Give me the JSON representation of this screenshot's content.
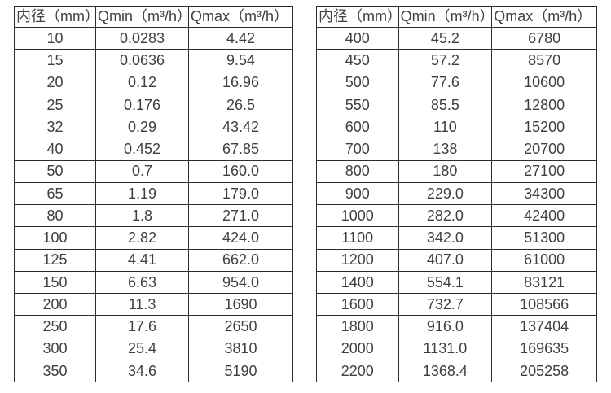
{
  "colors": {
    "background": "#ffffff",
    "border": "#2c2c2c",
    "text": "#3f3f3f"
  },
  "tables": {
    "headers": [
      "内径（mm）",
      "Qmin（m³/h）",
      "Qmax（m³/h）"
    ],
    "left": {
      "rows": [
        [
          "10",
          "0.0283",
          "4.42"
        ],
        [
          "15",
          "0.0636",
          "9.54"
        ],
        [
          "20",
          "0.12",
          "16.96"
        ],
        [
          "25",
          "0.176",
          "26.5"
        ],
        [
          "32",
          "0.29",
          "43.42"
        ],
        [
          "40",
          "0.452",
          "67.85"
        ],
        [
          "50",
          "0.7",
          "160.0"
        ],
        [
          "65",
          "1.19",
          "179.0"
        ],
        [
          "80",
          "1.8",
          "271.0"
        ],
        [
          "100",
          "2.82",
          "424.0"
        ],
        [
          "125",
          "4.41",
          "662.0"
        ],
        [
          "150",
          "6.63",
          "954.0"
        ],
        [
          "200",
          "11.3",
          "1690"
        ],
        [
          "250",
          "17.6",
          "2650"
        ],
        [
          "300",
          "25.4",
          "3810"
        ],
        [
          "350",
          "34.6",
          "5190"
        ]
      ]
    },
    "right": {
      "rows": [
        [
          "400",
          "45.2",
          "6780"
        ],
        [
          "450",
          "57.2",
          "8570"
        ],
        [
          "500",
          "77.6",
          "10600"
        ],
        [
          "550",
          "85.5",
          "12800"
        ],
        [
          "600",
          "110",
          "15200"
        ],
        [
          "700",
          "138",
          "20700"
        ],
        [
          "800",
          "180",
          "27100"
        ],
        [
          "900",
          "229.0",
          "34300"
        ],
        [
          "1000",
          "282.0",
          "42400"
        ],
        [
          "1100",
          "342.0",
          "51300"
        ],
        [
          "1200",
          "407.0",
          "61000"
        ],
        [
          "1400",
          "554.1",
          "83121"
        ],
        [
          "1600",
          "732.7",
          "108566"
        ],
        [
          "1800",
          "916.0",
          "137404"
        ],
        [
          "2000",
          "1131.0",
          "169635"
        ],
        [
          "2200",
          "1368.4",
          "205258"
        ]
      ]
    }
  }
}
